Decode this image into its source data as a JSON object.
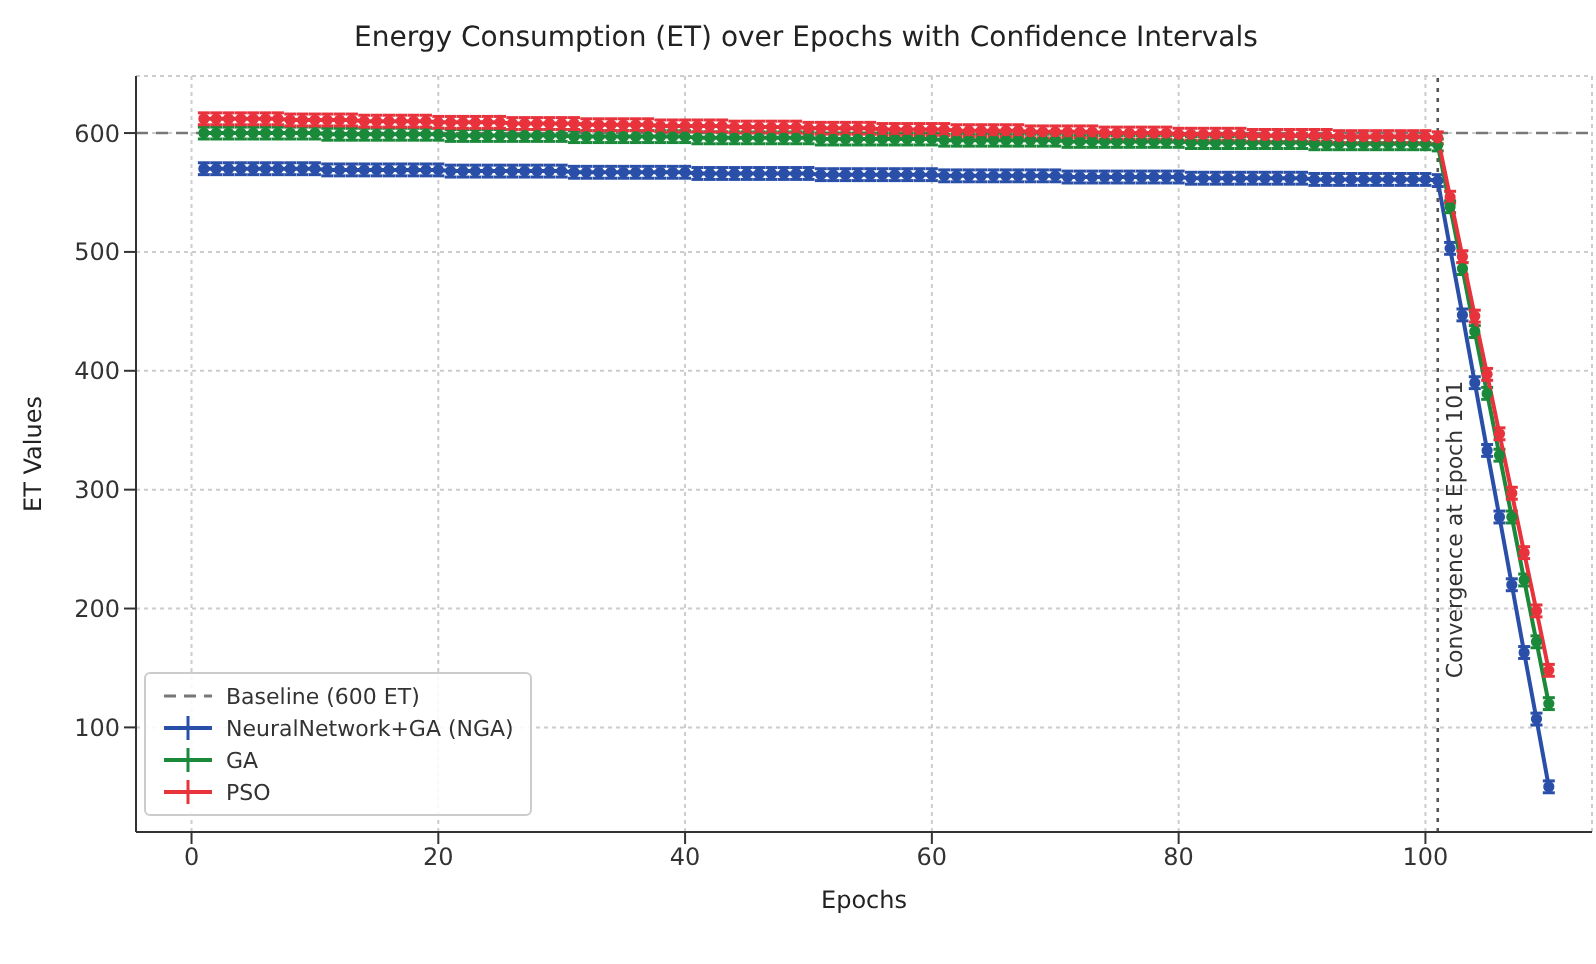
{
  "chart_data": {
    "type": "line",
    "title": "Energy Consumption (ET) over Epochs with Confidence Intervals",
    "xlabel": "Epochs",
    "ylabel": "ET Values",
    "x": [
      1,
      2,
      3,
      4,
      5,
      6,
      7,
      8,
      9,
      10,
      11,
      12,
      13,
      14,
      15,
      16,
      17,
      18,
      19,
      20,
      21,
      22,
      23,
      24,
      25,
      26,
      27,
      28,
      29,
      30,
      31,
      32,
      33,
      34,
      35,
      36,
      37,
      38,
      39,
      40,
      41,
      42,
      43,
      44,
      45,
      46,
      47,
      48,
      49,
      50,
      51,
      52,
      53,
      54,
      55,
      56,
      57,
      58,
      59,
      60,
      61,
      62,
      63,
      64,
      65,
      66,
      67,
      68,
      69,
      70,
      71,
      72,
      73,
      74,
      75,
      76,
      77,
      78,
      79,
      80,
      81,
      82,
      83,
      84,
      85,
      86,
      87,
      88,
      89,
      90,
      91,
      92,
      93,
      94,
      95,
      96,
      97,
      98,
      99,
      100,
      101,
      102,
      103,
      104,
      105,
      106,
      107,
      108,
      109,
      110
    ],
    "series": [
      {
        "name": "NeuralNetwork+GA (NGA)",
        "color": "#2a4fa8",
        "values": [
          570,
          570,
          570,
          570,
          570,
          570,
          570,
          570,
          570,
          570,
          569,
          569,
          569,
          569,
          569,
          569,
          569,
          569,
          569,
          569,
          568,
          568,
          568,
          568,
          568,
          568,
          568,
          568,
          568,
          568,
          567,
          567,
          567,
          567,
          567,
          567,
          567,
          567,
          567,
          567,
          566,
          566,
          566,
          566,
          566,
          566,
          566,
          566,
          566,
          566,
          565,
          565,
          565,
          565,
          565,
          565,
          565,
          565,
          565,
          565,
          564,
          564,
          564,
          564,
          564,
          564,
          564,
          564,
          564,
          564,
          563,
          563,
          563,
          563,
          563,
          563,
          563,
          563,
          563,
          563,
          562,
          562,
          562,
          562,
          562,
          562,
          562,
          562,
          562,
          562,
          561,
          561,
          561,
          561,
          561,
          561,
          561,
          561,
          561,
          561,
          560,
          503,
          447,
          390,
          333,
          277,
          220,
          163,
          107,
          50
        ],
        "errors": [
          5,
          5,
          5,
          5,
          5,
          5,
          5,
          5,
          5,
          5,
          5,
          5,
          5,
          5,
          5,
          5,
          5,
          5,
          5,
          5,
          5,
          5,
          5,
          5,
          5,
          5,
          5,
          5,
          5,
          5,
          5,
          5,
          5,
          5,
          5,
          5,
          5,
          5,
          5,
          5,
          5,
          5,
          5,
          5,
          5,
          5,
          5,
          5,
          5,
          5,
          5,
          5,
          5,
          5,
          5,
          5,
          5,
          5,
          5,
          5,
          5,
          5,
          5,
          5,
          5,
          5,
          5,
          5,
          5,
          5,
          5,
          5,
          5,
          5,
          5,
          5,
          5,
          5,
          5,
          5,
          5,
          5,
          5,
          5,
          5,
          5,
          5,
          5,
          5,
          5,
          5,
          5,
          5,
          5,
          5,
          5,
          5,
          5,
          5,
          5,
          5,
          5,
          5,
          5,
          5,
          5,
          5,
          5,
          5,
          5
        ]
      },
      {
        "name": "GA",
        "color": "#1a8a3a",
        "values": [
          600,
          600,
          600,
          600,
          600,
          600,
          600,
          600,
          600,
          600,
          599,
          599,
          599,
          599,
          599,
          599,
          599,
          599,
          599,
          599,
          598,
          598,
          598,
          598,
          598,
          598,
          598,
          598,
          598,
          598,
          597,
          597,
          597,
          597,
          597,
          597,
          597,
          597,
          597,
          597,
          596,
          596,
          596,
          596,
          596,
          596,
          596,
          596,
          596,
          596,
          595,
          595,
          595,
          595,
          595,
          595,
          595,
          595,
          595,
          595,
          594,
          594,
          594,
          594,
          594,
          594,
          594,
          594,
          594,
          594,
          593,
          593,
          593,
          593,
          593,
          593,
          593,
          593,
          593,
          593,
          592,
          592,
          592,
          592,
          592,
          592,
          592,
          592,
          592,
          592,
          591,
          591,
          591,
          591,
          591,
          591,
          591,
          591,
          591,
          591,
          590,
          538,
          486,
          433,
          381,
          329,
          277,
          224,
          172,
          120
        ],
        "errors": [
          5,
          5,
          5,
          5,
          5,
          5,
          5,
          5,
          5,
          5,
          5,
          5,
          5,
          5,
          5,
          5,
          5,
          5,
          5,
          5,
          5,
          5,
          5,
          5,
          5,
          5,
          5,
          5,
          5,
          5,
          5,
          5,
          5,
          5,
          5,
          5,
          5,
          5,
          5,
          5,
          5,
          5,
          5,
          5,
          5,
          5,
          5,
          5,
          5,
          5,
          5,
          5,
          5,
          5,
          5,
          5,
          5,
          5,
          5,
          5,
          5,
          5,
          5,
          5,
          5,
          5,
          5,
          5,
          5,
          5,
          5,
          5,
          5,
          5,
          5,
          5,
          5,
          5,
          5,
          5,
          5,
          5,
          5,
          5,
          5,
          5,
          5,
          5,
          5,
          5,
          5,
          5,
          5,
          5,
          5,
          5,
          5,
          5,
          5,
          5,
          5,
          5,
          5,
          5,
          5,
          5,
          5,
          5,
          5,
          5
        ]
      },
      {
        "name": "PSO",
        "color": "#e8323c",
        "values": [
          612,
          612,
          612,
          612,
          612,
          612,
          612,
          611,
          611,
          611,
          611,
          611,
          611,
          610,
          610,
          610,
          610,
          610,
          610,
          609,
          609,
          609,
          609,
          609,
          609,
          608,
          608,
          608,
          608,
          608,
          608,
          607,
          607,
          607,
          607,
          607,
          607,
          606,
          606,
          606,
          606,
          606,
          606,
          605,
          605,
          605,
          605,
          605,
          605,
          604,
          604,
          604,
          604,
          604,
          604,
          603,
          603,
          603,
          603,
          603,
          603,
          602,
          602,
          602,
          602,
          602,
          602,
          601,
          601,
          601,
          601,
          601,
          601,
          600,
          600,
          600,
          600,
          600,
          600,
          599,
          599,
          599,
          599,
          599,
          599,
          598,
          598,
          598,
          598,
          598,
          598,
          598,
          597,
          597,
          597,
          597,
          597,
          597,
          597,
          597,
          596,
          546,
          496,
          446,
          397,
          347,
          297,
          247,
          198,
          148
        ],
        "errors": [
          5,
          5,
          5,
          5,
          5,
          5,
          5,
          5,
          5,
          5,
          5,
          5,
          5,
          5,
          5,
          5,
          5,
          5,
          5,
          5,
          5,
          5,
          5,
          5,
          5,
          5,
          5,
          5,
          5,
          5,
          5,
          5,
          5,
          5,
          5,
          5,
          5,
          5,
          5,
          5,
          5,
          5,
          5,
          5,
          5,
          5,
          5,
          5,
          5,
          5,
          5,
          5,
          5,
          5,
          5,
          5,
          5,
          5,
          5,
          5,
          5,
          5,
          5,
          5,
          5,
          5,
          5,
          5,
          5,
          5,
          5,
          5,
          5,
          5,
          5,
          5,
          5,
          5,
          5,
          5,
          5,
          5,
          5,
          5,
          5,
          5,
          5,
          5,
          5,
          5,
          5,
          5,
          5,
          5,
          5,
          5,
          5,
          5,
          5,
          5,
          5,
          5,
          5,
          5,
          5,
          5,
          5,
          5,
          5,
          5
        ]
      }
    ],
    "xlim": [
      -4.5,
      113.5
    ],
    "xticks": [
      0,
      20,
      40,
      60,
      80,
      100
    ],
    "ylim": [
      12,
      648
    ],
    "yticks": [
      100,
      200,
      300,
      400,
      500,
      600
    ],
    "ref_lines": [
      {
        "axis": "y",
        "value": 600,
        "label": "Baseline (600 ET)",
        "color": "#777777",
        "line_style": "dashed"
      },
      {
        "axis": "x",
        "value": 101,
        "label": "Convergence at Epoch 101",
        "color": "#555555",
        "line_style": "dotted"
      }
    ],
    "grid": true,
    "legend": "bottom left",
    "marker": "circle",
    "line_style": "solid"
  }
}
